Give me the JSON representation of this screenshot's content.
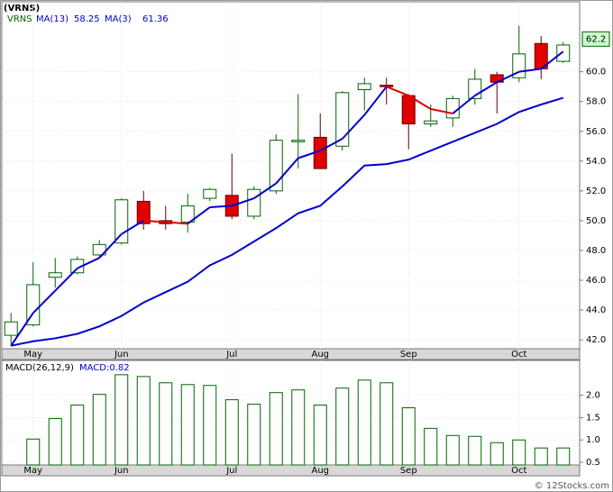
{
  "chart_data": [
    {
      "type": "candlestick",
      "title": "(VRNS)",
      "name": "VRNS",
      "categories": [
        null,
        "May",
        null,
        null,
        null,
        "Jun",
        null,
        null,
        null,
        null,
        "Jul",
        null,
        null,
        null,
        "Aug",
        null,
        null,
        null,
        "Sep",
        null,
        null,
        null,
        null,
        "Oct",
        null,
        null
      ],
      "open": [
        42.3,
        43.0,
        46.2,
        46.5,
        47.7,
        48.5,
        51.3,
        50.0,
        49.9,
        51.5,
        51.7,
        50.3,
        52.0,
        55.3,
        55.6,
        55.0,
        58.8,
        59.1,
        58.4,
        56.5,
        56.9,
        58.2,
        59.8,
        59.6,
        61.9,
        60.7
      ],
      "high": [
        43.8,
        47.2,
        47.5,
        47.6,
        48.7,
        51.5,
        52.0,
        51.0,
        51.8,
        52.2,
        54.5,
        52.3,
        55.8,
        58.5,
        57.2,
        58.7,
        59.6,
        59.6,
        58.5,
        57.8,
        58.4,
        60.2,
        60.0,
        63.1,
        62.4,
        62.0
      ],
      "low": [
        41.6,
        42.9,
        45.5,
        46.4,
        47.6,
        48.4,
        49.4,
        49.4,
        49.2,
        51.3,
        50.1,
        50.1,
        51.8,
        53.5,
        53.5,
        54.7,
        57.4,
        57.8,
        54.8,
        56.3,
        56.3,
        57.8,
        57.2,
        59.3,
        59.5,
        60.6
      ],
      "close": [
        43.2,
        45.7,
        46.5,
        47.4,
        48.4,
        51.4,
        49.8,
        49.8,
        51.0,
        52.1,
        50.3,
        52.1,
        55.4,
        55.4,
        53.5,
        58.6,
        59.2,
        59.0,
        56.5,
        56.7,
        58.2,
        59.5,
        59.3,
        61.2,
        60.2,
        61.8
      ],
      "up_color": "#006400",
      "down_color": "#e00000",
      "lines": [
        {
          "name": "MA(13)",
          "legend_value": 58.25,
          "color": "#0000cc",
          "values": [
            41.6,
            41.9,
            42.1,
            42.4,
            42.9,
            43.6,
            44.5,
            45.2,
            45.9,
            47.0,
            47.7,
            48.6,
            49.5,
            50.5,
            51.0,
            52.3,
            53.7,
            53.8,
            54.1,
            54.7,
            55.3,
            55.9,
            56.5,
            57.3,
            57.8,
            58.25
          ]
        },
        {
          "name": "MA(3)",
          "legend_value": 61.36,
          "color": "#0000cc",
          "down_color": "#e00000",
          "values": [
            41.6,
            43.8,
            45.3,
            46.8,
            47.5,
            49.1,
            50.0,
            49.9,
            49.8,
            50.9,
            51.0,
            51.5,
            52.5,
            54.2,
            54.7,
            55.5,
            57.1,
            59.0,
            58.4,
            57.5,
            57.2,
            58.4,
            59.3,
            60.0,
            60.2,
            61.36
          ]
        }
      ],
      "last_price": 62.2,
      "ylim": [
        41.4,
        64.7
      ],
      "yticks": [
        {
          "value": 42,
          "label": "42.0"
        },
        {
          "value": 44,
          "label": "44.0"
        },
        {
          "value": 46,
          "label": "46.0"
        },
        {
          "value": 48,
          "label": "48.0"
        },
        {
          "value": 50,
          "label": "50.0"
        },
        {
          "value": 52,
          "label": "52.0"
        },
        {
          "value": 54,
          "label": "54.0"
        },
        {
          "value": 56,
          "label": "56.0"
        },
        {
          "value": 58,
          "label": "58.0"
        },
        {
          "value": 60,
          "label": "60.0"
        }
      ],
      "grid": true
    },
    {
      "type": "bar",
      "title": "MACD(26,12,9)",
      "legend": "MACD:0.82",
      "categories": [
        null,
        "May",
        null,
        null,
        null,
        "Jun",
        null,
        null,
        null,
        null,
        "Jul",
        null,
        null,
        null,
        "Aug",
        null,
        null,
        null,
        "Sep",
        null,
        null,
        null,
        null,
        "Oct",
        null,
        null
      ],
      "values": [
        null,
        1.02,
        1.48,
        1.78,
        2.02,
        2.46,
        2.42,
        2.28,
        2.24,
        2.22,
        1.9,
        1.8,
        2.06,
        2.12,
        1.78,
        2.16,
        2.34,
        2.28,
        1.72,
        1.26,
        1.1,
        1.08,
        0.94,
        1.0,
        0.82,
        0.82
      ],
      "color": "#006400",
      "ylim": [
        0.44,
        2.78
      ],
      "yticks": [
        0.5,
        {
          "value": 1,
          "label": "1.0"
        },
        1.5,
        {
          "value": 2,
          "label": "2.0"
        }
      ],
      "grid": true
    }
  ],
  "credit": "© 12Stocks.com"
}
